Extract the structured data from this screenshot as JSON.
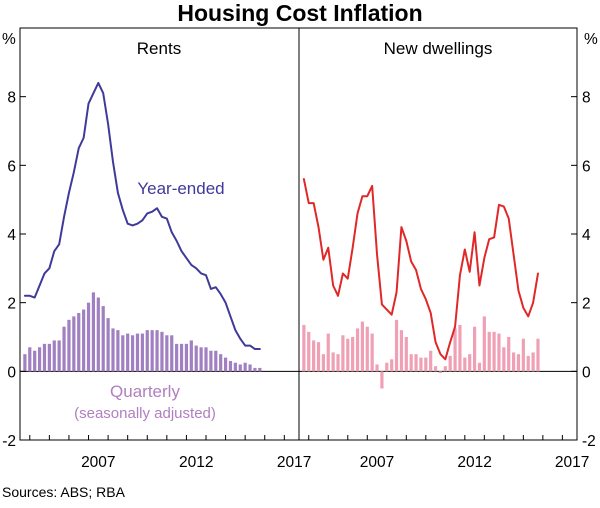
{
  "chart_data": {
    "type": "line+bar",
    "title": "Housing Cost Inflation",
    "unit_label": "%",
    "source": "Sources:   ABS; RBA",
    "yticks": [
      -2,
      0,
      2,
      4,
      6,
      8
    ],
    "ylim": [
      -2,
      10
    ],
    "xlim": [
      2003.5,
      2017.75
    ],
    "xticks": [
      2007,
      2012,
      2017
    ],
    "colors": {
      "rents_line": "#3f3a9a",
      "rents_bars": "#a080c0",
      "dwell_line": "#e02828",
      "dwell_bars": "#f0a0b4",
      "annotation_line": "#3f3a9a",
      "annotation_bars": "#b07fc0"
    },
    "panels": [
      {
        "title": "Rents",
        "annotations": {
          "line_label": "Year-ended",
          "bar_label": "Quarterly",
          "bar_sublabel": "(seasonally adjusted)"
        },
        "series": [
          {
            "name": "Year-ended",
            "kind": "line",
            "start": 2003.75,
            "step": 0.25,
            "values": [
              2.2,
              2.2,
              2.15,
              2.5,
              2.85,
              3.0,
              3.5,
              3.7,
              4.5,
              5.2,
              5.8,
              6.5,
              6.8,
              7.8,
              8.1,
              8.4,
              8.1,
              7.2,
              6.1,
              5.2,
              4.7,
              4.3,
              4.25,
              4.3,
              4.4,
              4.6,
              4.65,
              4.75,
              4.5,
              4.45,
              4.05,
              3.8,
              3.5,
              3.3,
              3.1,
              3.0,
              2.85,
              2.8,
              2.4,
              2.45,
              2.25,
              2.0,
              1.6,
              1.2,
              0.95,
              0.75,
              0.75,
              0.65,
              0.65
            ]
          },
          {
            "name": "Quarterly (seasonally adjusted)",
            "kind": "bar",
            "start": 2003.75,
            "step": 0.25,
            "values": [
              0.5,
              0.7,
              0.6,
              0.7,
              0.8,
              0.8,
              0.9,
              0.9,
              1.3,
              1.5,
              1.6,
              1.7,
              1.8,
              2.0,
              2.3,
              2.15,
              1.9,
              1.55,
              1.25,
              1.2,
              1.05,
              1.1,
              1.05,
              1.1,
              1.1,
              1.2,
              1.2,
              1.2,
              1.15,
              1.05,
              1.05,
              0.8,
              0.8,
              0.8,
              0.9,
              0.75,
              0.7,
              0.7,
              0.6,
              0.6,
              0.5,
              0.4,
              0.3,
              0.25,
              0.2,
              0.25,
              0.2,
              0.1,
              0.1
            ]
          }
        ]
      },
      {
        "title": "New dwellings",
        "series": [
          {
            "name": "Year-ended",
            "kind": "line",
            "start": 2003.75,
            "step": 0.25,
            "values": [
              5.6,
              4.9,
              4.9,
              4.2,
              3.25,
              3.6,
              2.5,
              2.2,
              2.85,
              2.7,
              3.6,
              4.6,
              5.1,
              5.1,
              5.4,
              3.4,
              1.95,
              1.8,
              1.65,
              2.3,
              4.2,
              3.8,
              3.2,
              2.95,
              2.4,
              2.1,
              1.7,
              0.85,
              0.5,
              0.35,
              0.85,
              1.3,
              2.8,
              3.55,
              2.9,
              4.05,
              2.5,
              3.3,
              3.85,
              3.9,
              4.85,
              4.8,
              4.45,
              3.4,
              2.35,
              1.85,
              1.6,
              2.0,
              2.85
            ]
          },
          {
            "name": "Quarterly",
            "kind": "bar",
            "start": 2003.75,
            "step": 0.25,
            "values": [
              1.35,
              1.15,
              0.9,
              0.85,
              0.5,
              1.1,
              0.55,
              0.5,
              1.05,
              0.95,
              1.0,
              1.25,
              1.45,
              1.3,
              1.1,
              0.2,
              -0.5,
              0.25,
              0.35,
              1.5,
              1.2,
              1.0,
              0.5,
              0.5,
              0.4,
              0.4,
              0.6,
              0.15,
              -0.05,
              0.15,
              0.45,
              1.25,
              1.35,
              0.4,
              0.5,
              1.3,
              0.25,
              1.6,
              1.15,
              1.15,
              1.1,
              0.7,
              1.0,
              0.55,
              0.5,
              0.95,
              0.45,
              0.55,
              0.95
            ]
          }
        ]
      }
    ]
  }
}
